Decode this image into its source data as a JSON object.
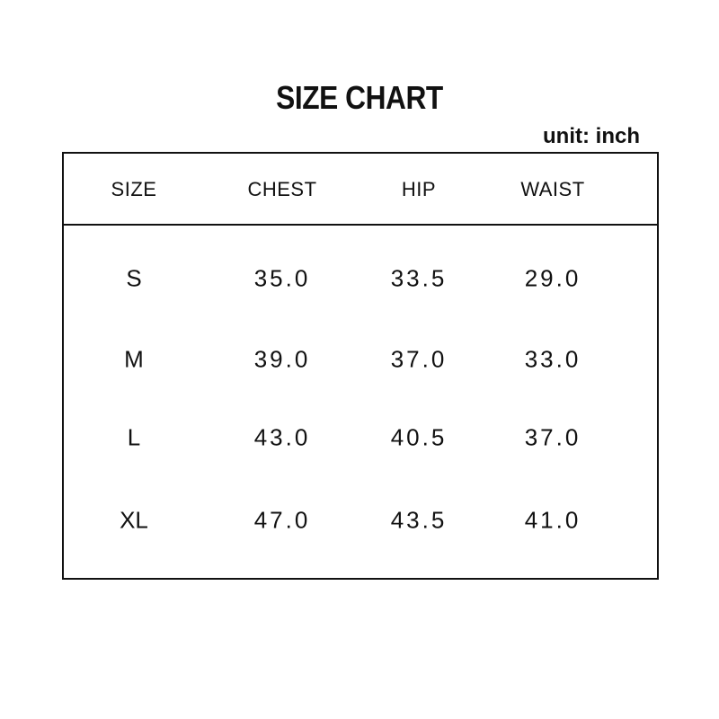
{
  "title": "SIZE CHART",
  "unit": "unit: inch",
  "headers": [
    "SIZE",
    "CHEST",
    "HIP",
    "WAIST"
  ],
  "rows": [
    [
      "S",
      "35.0",
      "33.5",
      "29.0"
    ],
    [
      "M",
      "39.0",
      "37.0",
      "33.0"
    ],
    [
      "L",
      "43.0",
      "40.5",
      "37.0"
    ],
    [
      "XL",
      "47.0",
      "43.5",
      "41.0"
    ]
  ]
}
